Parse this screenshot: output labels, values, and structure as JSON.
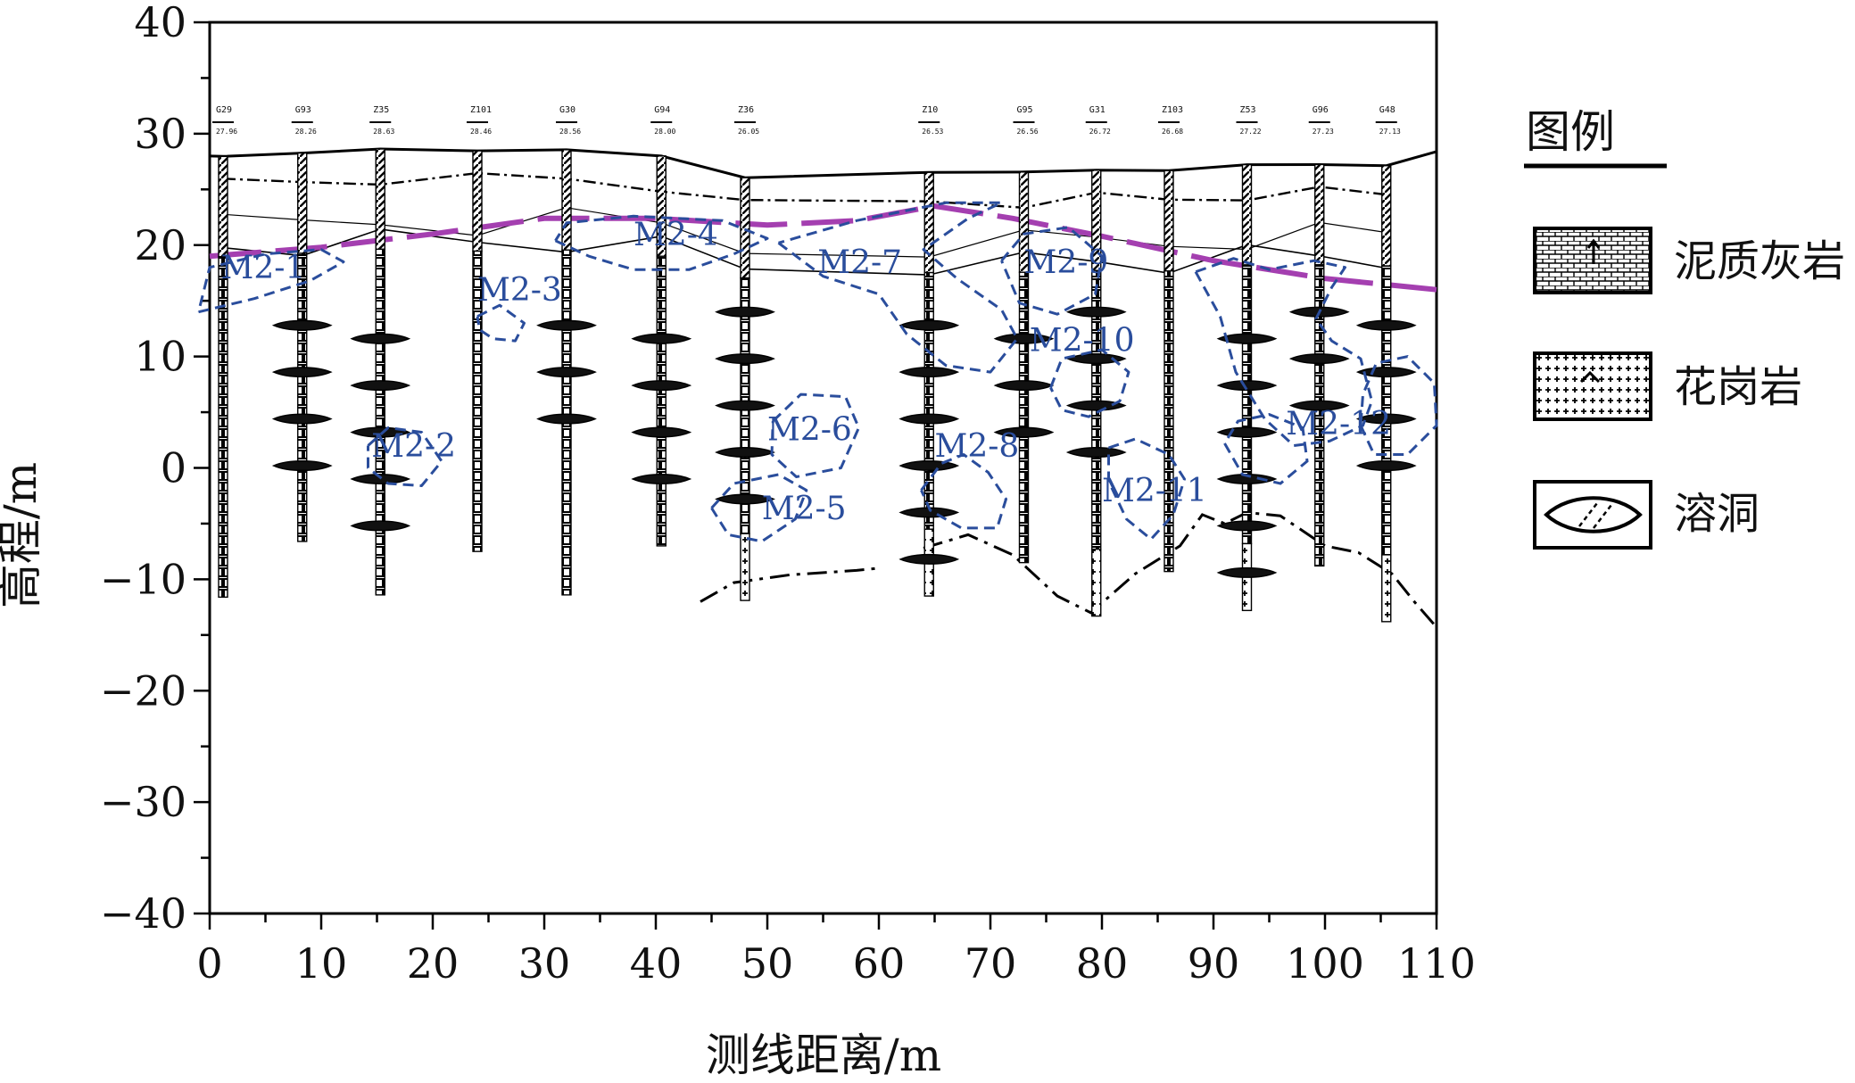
{
  "chart_data": {
    "type": "diagram",
    "title": "",
    "xlabel": "测线距离/m",
    "ylabel": "高程/m",
    "xlim": [
      0,
      110
    ],
    "ylim": [
      -40,
      40
    ],
    "xticks": [
      "0",
      "10",
      "20",
      "30",
      "40",
      "50",
      "60",
      "70",
      "80",
      "90",
      "100",
      "110"
    ],
    "yticks": [
      "40",
      "30",
      "20",
      "10",
      "0",
      "−10",
      "−20",
      "−30",
      "−40"
    ],
    "boreholes": [
      {
        "name": "G29",
        "elev": "27.96",
        "x": 1.2,
        "bottom": -11.6
      },
      {
        "name": "G93",
        "elev": "28.26",
        "x": 8.3,
        "bottom": -6.6
      },
      {
        "name": "Z35",
        "elev": "28.63",
        "x": 15.3,
        "bottom": -11.4
      },
      {
        "name": "Z101",
        "elev": "28.46",
        "x": 24.0,
        "bottom": -7.5
      },
      {
        "name": "G30",
        "elev": "28.56",
        "x": 32.0,
        "bottom": -11.4
      },
      {
        "name": "G94",
        "elev": "28.00",
        "x": 40.5,
        "bottom": -7.0
      },
      {
        "name": "Z36",
        "elev": "26.05",
        "x": 48.0,
        "bottom": -11.9
      },
      {
        "name": "Z10",
        "elev": "26.53",
        "x": 64.5,
        "bottom": -11.5
      },
      {
        "name": "G95",
        "elev": "26.56",
        "x": 73.0,
        "bottom": -8.5
      },
      {
        "name": "G31",
        "elev": "26.72",
        "x": 79.5,
        "bottom": -13.3
      },
      {
        "name": "Z103",
        "elev": "26.68",
        "x": 86.0,
        "bottom": -9.3
      },
      {
        "name": "Z53",
        "elev": "27.22",
        "x": 93.0,
        "bottom": -12.8
      },
      {
        "name": "G96",
        "elev": "27.23",
        "x": 99.5,
        "bottom": -8.8
      },
      {
        "name": "G48",
        "elev": "27.13",
        "x": 105.5,
        "bottom": -13.8
      }
    ],
    "zones": [
      {
        "label": "M2-1",
        "x": 1.0,
        "y": 17.0
      },
      {
        "label": "M2-2",
        "x": 14.5,
        "y": 1.0
      },
      {
        "label": "M2-3",
        "x": 24.0,
        "y": 15.0
      },
      {
        "label": "M2-4",
        "x": 38.0,
        "y": 20.0
      },
      {
        "label": "M2-5",
        "x": 49.5,
        "y": -4.6
      },
      {
        "label": "M2-6",
        "x": 50.0,
        "y": 2.5
      },
      {
        "label": "M2-7",
        "x": 54.5,
        "y": 17.5
      },
      {
        "label": "M2-8",
        "x": 65.0,
        "y": 1.0
      },
      {
        "label": "M2-9",
        "x": 73.0,
        "y": 17.5
      },
      {
        "label": "M2-10",
        "x": 73.5,
        "y": 10.5
      },
      {
        "label": "M2-11",
        "x": 80.0,
        "y": -3.0
      },
      {
        "label": "M2-12",
        "x": 96.5,
        "y": 3.0
      }
    ],
    "legend": {
      "title": "图例",
      "items": [
        {
          "label": "泥质灰岩",
          "pattern": "limestone"
        },
        {
          "label": "花岗岩",
          "pattern": "granite"
        },
        {
          "label": "溶洞",
          "pattern": "karst-cave"
        }
      ]
    },
    "colors": {
      "zone_outline": "#2a4d9c",
      "bedrock_line": "#a43fb0",
      "ground": "#000000"
    }
  }
}
